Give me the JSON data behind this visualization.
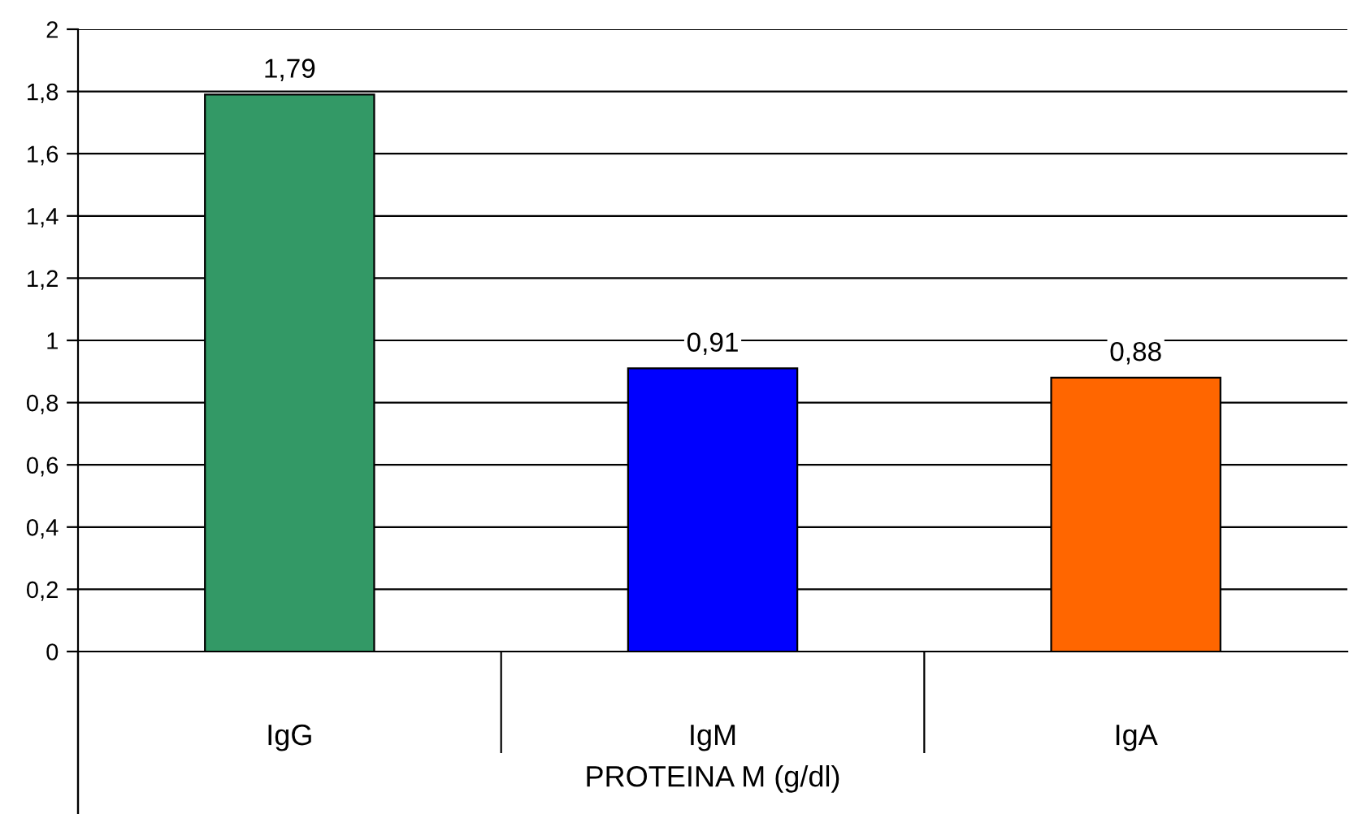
{
  "chart_data": {
    "type": "bar",
    "xlabel": "PROTEINA M (g/dl)",
    "categories": [
      "IgG",
      "IgM",
      "IgA"
    ],
    "values": [
      1.79,
      0.91,
      0.88
    ],
    "colors": [
      "#339966",
      "#0000ff",
      "#ff6600"
    ],
    "value_labels": [
      "1,79",
      "0,91",
      "0,88"
    ],
    "ylim": [
      0,
      2
    ],
    "yticks": [
      0,
      {
        "value": 0.2,
        "label": "0,2"
      },
      {
        "value": 0.4,
        "label": "0,4"
      },
      {
        "value": 0.6,
        "label": "0,6"
      },
      {
        "value": 0.8,
        "label": "0,8"
      },
      1,
      {
        "value": 1.2,
        "label": "1,2"
      },
      {
        "value": 1.4,
        "label": "1,4"
      },
      {
        "value": 1.6,
        "label": "1,6"
      },
      {
        "value": 1.8,
        "label": "1,8"
      },
      2
    ],
    "grid": "y"
  }
}
